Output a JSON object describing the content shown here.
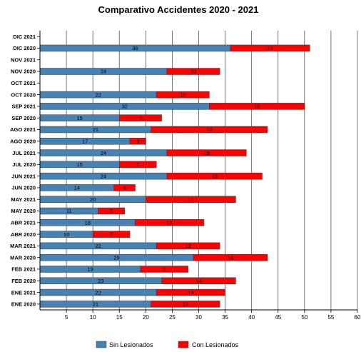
{
  "chart_data": {
    "type": "bar",
    "orientation": "horizontal",
    "stacked": true,
    "title": "Comparativo Accidentes 2020 - 2021",
    "xlim": [
      0,
      60
    ],
    "x_ticks": [
      5,
      10,
      15,
      20,
      25,
      30,
      35,
      40,
      45,
      50,
      55,
      60
    ],
    "grid": true,
    "legend_position": "bottom",
    "categories": [
      "ENE 2020",
      "ENE 2021",
      "FEB 2020",
      "FEB 2021",
      "MAR 2020",
      "MAR 2021",
      "ABR 2020",
      "ABR 2021",
      "MAY 2020",
      "MAY 2021",
      "JUN 2020",
      "JUN 2021",
      "JUL 2020",
      "JUL 2021",
      "AGO 2020",
      "AGO 2021",
      "SEP 2020",
      "SEP 2021",
      "OCT 2020",
      "OCT 2021",
      "NOV 2020",
      "NOV 2021",
      "DIC 2020",
      "DIC 2021"
    ],
    "series": [
      {
        "name": "Sin Lesionados",
        "color": "#4682b4",
        "values": [
          21,
          22,
          23,
          19,
          29,
          22,
          10,
          18,
          11,
          20,
          14,
          24,
          15,
          24,
          17,
          21,
          15,
          32,
          22,
          null,
          24,
          null,
          36,
          null
        ]
      },
      {
        "name": "Con Lesionados",
        "color": "#ff0000",
        "values": [
          13,
          13,
          14,
          9,
          14,
          12,
          7,
          13,
          5,
          17,
          4,
          18,
          7,
          15,
          3,
          22,
          8,
          18,
          10,
          null,
          10,
          null,
          15,
          null
        ]
      }
    ]
  }
}
